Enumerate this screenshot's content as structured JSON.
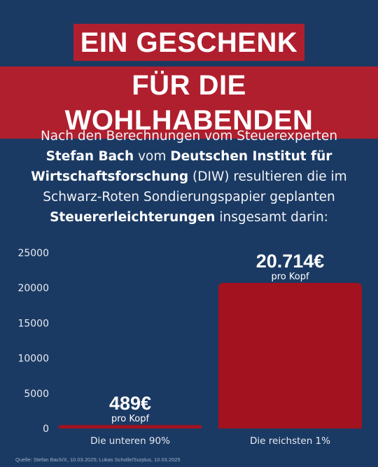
{
  "title": {
    "line1": "EIN GESCHENK",
    "line2": "FÜR DIE WOHLHABENDEN"
  },
  "intro": {
    "t1": "Nach den Berechnungen vom Steuerexperten",
    "b1": "Stefan Bach",
    "t2": " vom ",
    "b2": "Deutschen Institut für",
    "b3": "Wirtschaftsforschung",
    "t3": " (DIW) resultieren die im",
    "t4": "Schwarz-Roten Sondierungspapier geplanten",
    "b4": "Steuererleichterungen",
    "t5": " insgesamt darin:"
  },
  "colors": {
    "background": "#1b3a63",
    "accent": "#b01f2e",
    "bar": "#a3121f"
  },
  "chart_data": {
    "type": "bar",
    "categories": [
      "Die unteren 90%",
      "Die reichsten 1%"
    ],
    "values": [
      489,
      20714
    ],
    "value_labels": [
      "489€",
      "20.714€"
    ],
    "value_sublabels": [
      "pro Kopf",
      "pro Kopf"
    ],
    "ylim": [
      0,
      25000
    ],
    "yticks": [
      0,
      5000,
      10000,
      15000,
      20000,
      25000
    ],
    "grid": false,
    "legend": "none"
  },
  "source": "Quelle: Stefan Bach/X, 10.03.2025; Lukas Scholle/Surplus, 10.03.2025"
}
